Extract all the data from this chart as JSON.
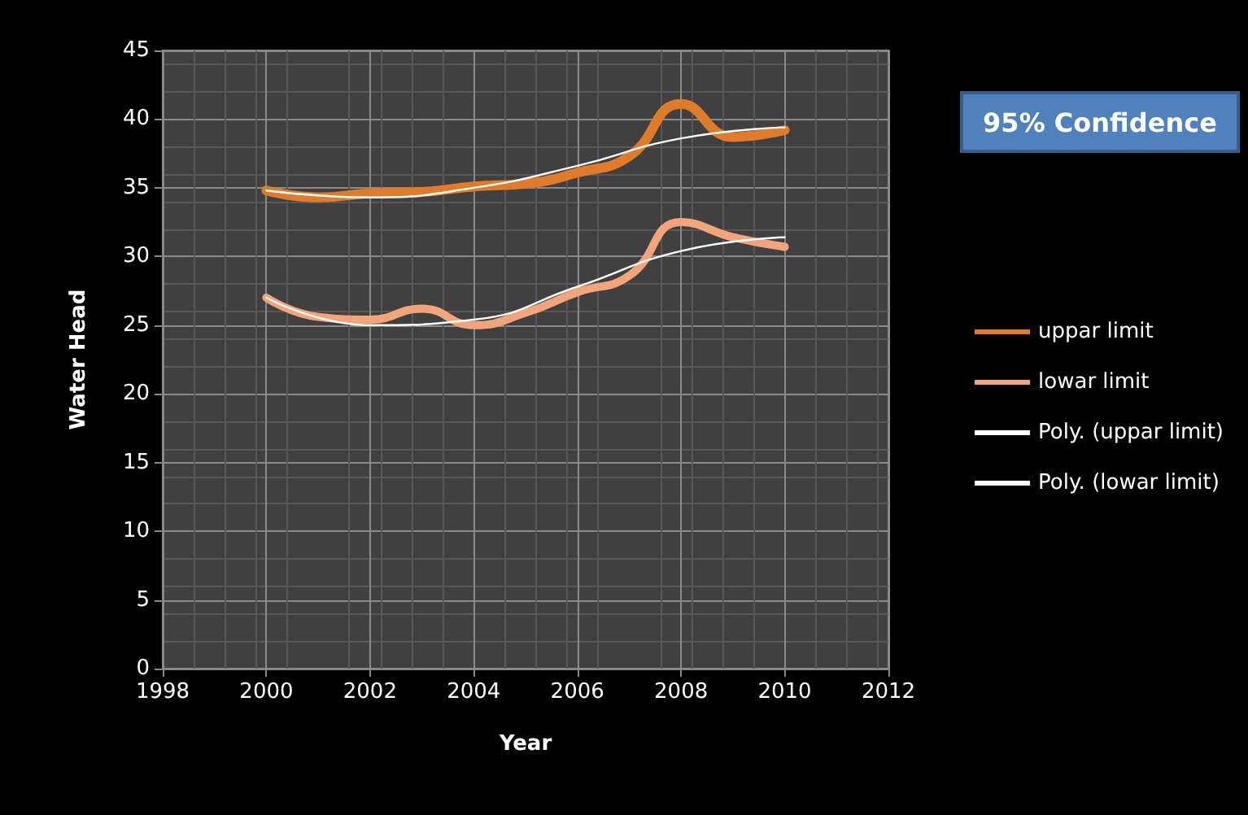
{
  "chart_data": {
    "type": "line",
    "xlabel": "Year",
    "ylabel": "Water Head",
    "annotations": [
      "95% Confidence"
    ],
    "x": [
      2000,
      2001,
      2002,
      2003,
      2004,
      2005,
      2006,
      2007,
      2008,
      2009,
      2010
    ],
    "series": [
      {
        "name": "uppar limit",
        "color": "#e07b2a",
        "values": [
          34.8,
          34.3,
          34.6,
          34.7,
          35.1,
          35.3,
          36.1,
          37.3,
          41.1,
          38.7,
          39.2
        ]
      },
      {
        "name": "lowar limit",
        "color": "#f4a47a",
        "values": [
          27.0,
          25.6,
          25.4,
          26.2,
          25.0,
          25.9,
          27.4,
          28.6,
          32.5,
          31.4,
          30.7
        ]
      },
      {
        "name": "Poly. (uppar limit)",
        "color": "#ffffff",
        "x": [
          2000,
          2002,
          2004,
          2006,
          2008,
          2010
        ],
        "values": [
          34.8,
          34.3,
          35.0,
          36.6,
          38.6,
          39.4
        ]
      },
      {
        "name": "Poly. (lowar limit)",
        "color": "#ffffff",
        "x": [
          2000,
          2002,
          2004,
          2006,
          2008,
          2010
        ],
        "values": [
          27.0,
          25.0,
          25.4,
          27.8,
          30.4,
          31.4
        ]
      }
    ],
    "xlim": [
      1998,
      2012
    ],
    "xticks": [
      1998,
      2000,
      2002,
      2004,
      2006,
      2008,
      2010,
      2012
    ],
    "ylim": [
      0,
      45
    ],
    "yticks": [
      0,
      5,
      10,
      15,
      20,
      25,
      30,
      35,
      40,
      45
    ],
    "grid": true,
    "legend": "right",
    "marker": "none",
    "line_style": "solid"
  }
}
